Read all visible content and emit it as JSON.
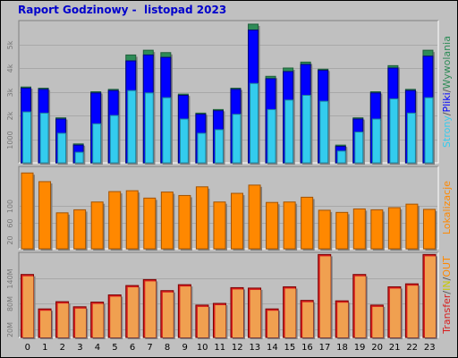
{
  "title": "Raport Godzinowy -  listopad 2023",
  "colors": {
    "background": "#c0c0c0",
    "panel": "#c0c0c0",
    "grid": "#a8a8a8",
    "title": "#0000cc",
    "wywolania": "#2e8b57",
    "pliki": "#0000ff",
    "strony": "#33ccee",
    "lokalizacje": "#ff8800",
    "transfer": "#d81e1e",
    "transfer_fill": "#f0a050",
    "out": "#c8c800"
  },
  "chart_data": [
    {
      "type": "bar",
      "categories": [
        "0",
        "1",
        "2",
        "3",
        "4",
        "5",
        "6",
        "7",
        "8",
        "9",
        "10",
        "11",
        "12",
        "13",
        "14",
        "15",
        "16",
        "17",
        "18",
        "19",
        "20",
        "21",
        "22",
        "23"
      ],
      "ylim": [
        0,
        6000
      ],
      "yticks": [
        "1000",
        "2k",
        "3k",
        "4k",
        "5k"
      ],
      "ytick_values": [
        1000,
        2000,
        3000,
        4000,
        5000
      ],
      "legend": [
        {
          "text": "Strony",
          "color": "#33ccee"
        },
        {
          "text": "/",
          "color": "#555555"
        },
        {
          "text": "Pliki",
          "color": "#0000ff"
        },
        {
          "text": "/",
          "color": "#555555"
        },
        {
          "text": "Wywolania",
          "color": "#2e8b57"
        }
      ],
      "series": [
        {
          "name": "Wywolania",
          "values": [
            3200,
            3150,
            1900,
            800,
            3000,
            3100,
            4550,
            4750,
            4650,
            2900,
            2100,
            2250,
            3150,
            5850,
            3650,
            4000,
            4250,
            3950,
            750,
            1900,
            3000,
            4100,
            3100,
            4750
          ]
        },
        {
          "name": "Pliki",
          "values": [
            3150,
            3100,
            1850,
            750,
            2950,
            3050,
            4300,
            4550,
            4450,
            2850,
            2050,
            2200,
            3100,
            5600,
            3550,
            3850,
            4150,
            3900,
            700,
            1850,
            2950,
            4000,
            3050,
            4500
          ]
        },
        {
          "name": "Strony",
          "values": [
            2150,
            2100,
            1250,
            450,
            1650,
            2000,
            3050,
            2950,
            2750,
            1850,
            1250,
            1400,
            2050,
            3350,
            2250,
            2650,
            2850,
            2600,
            500,
            1300,
            1850,
            2700,
            2100,
            2750
          ]
        }
      ]
    },
    {
      "type": "bar",
      "categories": [
        "0",
        "1",
        "2",
        "3",
        "4",
        "5",
        "6",
        "7",
        "8",
        "9",
        "10",
        "11",
        "12",
        "13",
        "14",
        "15",
        "16",
        "17",
        "18",
        "19",
        "20",
        "21",
        "22",
        "23"
      ],
      "ylim": [
        0,
        190
      ],
      "yticks": [
        "20",
        "60",
        "100"
      ],
      "ytick_values": [
        20,
        60,
        100
      ],
      "legend": [
        {
          "text": "Lokalizacje",
          "color": "#ff8800"
        }
      ],
      "series": [
        {
          "name": "Lokalizacje",
          "values": [
            175,
            155,
            83,
            90,
            108,
            132,
            134,
            117,
            131,
            123,
            143,
            108,
            128,
            147,
            107,
            108,
            119,
            89,
            84,
            92,
            90,
            95,
            103,
            91
          ]
        }
      ]
    },
    {
      "type": "bar",
      "categories": [
        "0",
        "1",
        "2",
        "3",
        "4",
        "5",
        "6",
        "7",
        "8",
        "9",
        "10",
        "11",
        "12",
        "13",
        "14",
        "15",
        "16",
        "17",
        "18",
        "19",
        "20",
        "21",
        "22",
        "23"
      ],
      "ylim": [
        0,
        200
      ],
      "yticks": [
        "20M",
        "80M",
        "140M"
      ],
      "ytick_values": [
        20,
        80,
        140
      ],
      "legend": [
        {
          "text": "Transfer",
          "color": "#d81e1e"
        },
        {
          "text": "/",
          "color": "#555555"
        },
        {
          "text": "IN",
          "color": "#c8c800"
        },
        {
          "text": "/",
          "color": "#555555"
        },
        {
          "text": "OUT",
          "color": "#ff8800"
        }
      ],
      "series": [
        {
          "name": "Transfer",
          "values": [
            148,
            67,
            84,
            72,
            83,
            100,
            122,
            136,
            110,
            124,
            76,
            80,
            117,
            116,
            67,
            119,
            87,
            195,
            86,
            148,
            76,
            119,
            126,
            195
          ]
        }
      ]
    }
  ]
}
